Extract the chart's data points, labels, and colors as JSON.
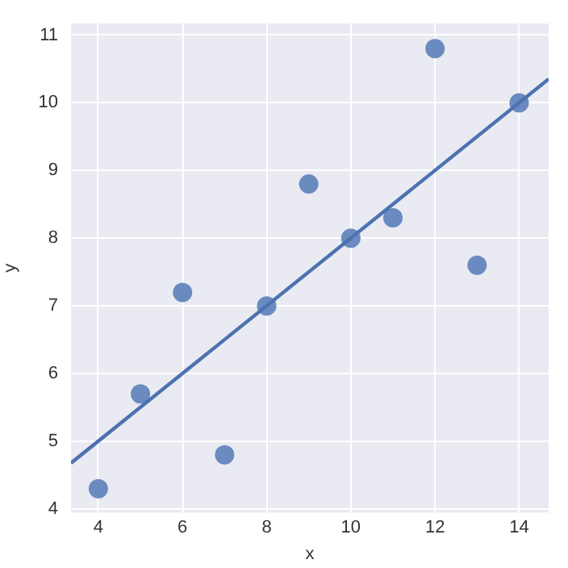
{
  "chart_data": {
    "type": "scatter",
    "xlabel": "x",
    "ylabel": "y",
    "series": [
      {
        "marker": "circle",
        "color": "#6b8bc0",
        "x": [
          10,
          8,
          13,
          9,
          11,
          14,
          6,
          4,
          12,
          7,
          5
        ],
        "values": [
          8.0,
          7.0,
          7.6,
          8.8,
          8.3,
          10.0,
          7.2,
          4.3,
          10.8,
          4.8,
          5.7
        ]
      },
      {
        "type": "line",
        "marker": "none",
        "color": "#4c72b0",
        "x": [
          3.35,
          14.7
        ],
        "values": [
          4.68,
          10.35
        ]
      }
    ],
    "xlim": [
      3.35,
      14.7
    ],
    "ylim": [
      3.95,
      11.17
    ],
    "xticks": [
      4,
      6,
      8,
      10,
      12,
      14
    ],
    "yticks": [
      4,
      5,
      6,
      7,
      8,
      9,
      10,
      11
    ],
    "grid": true,
    "legend": false
  }
}
